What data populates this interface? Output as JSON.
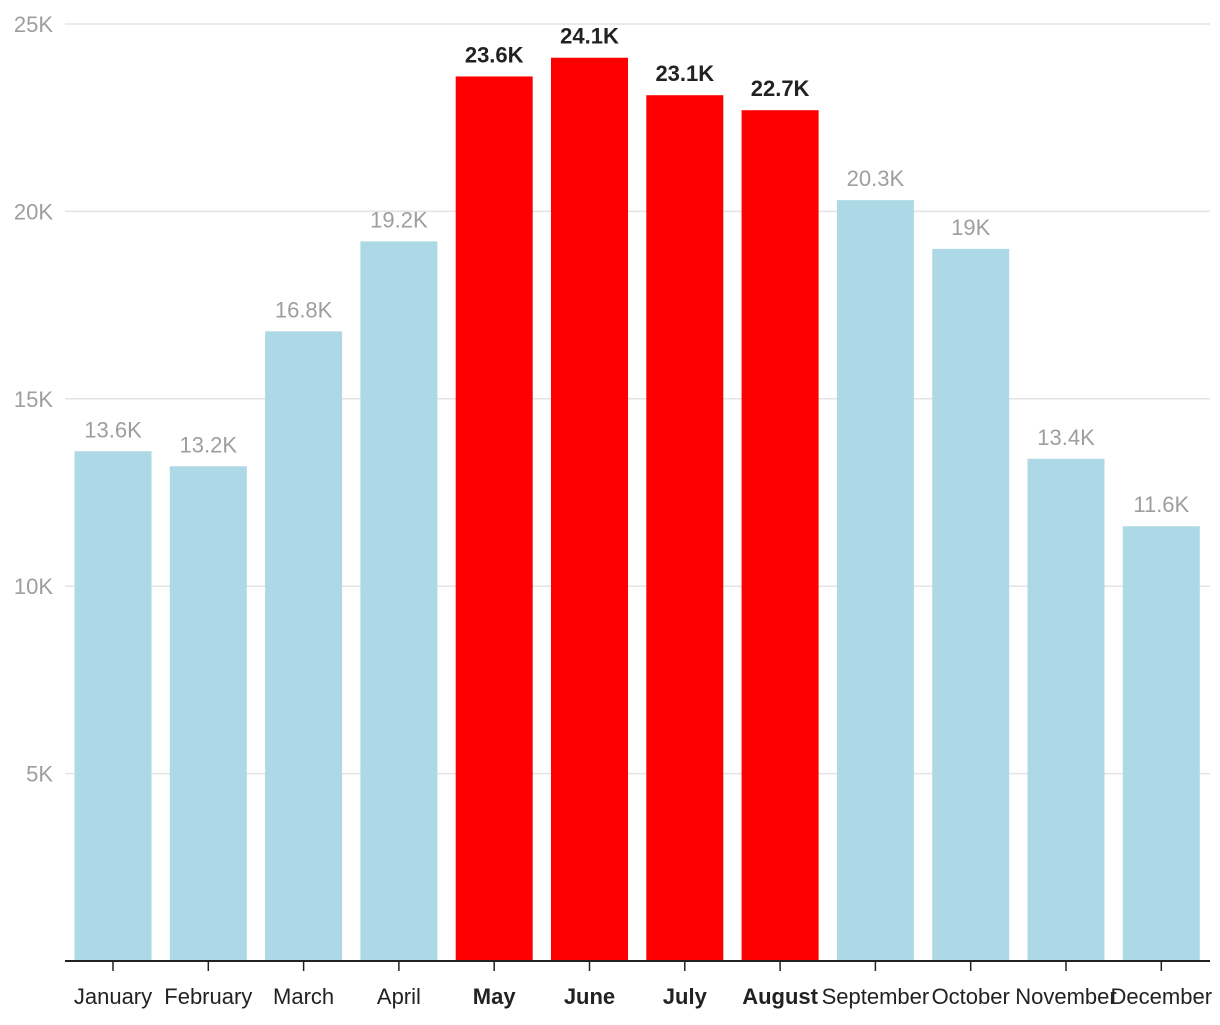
{
  "chart_data": {
    "type": "bar",
    "title": "",
    "xlabel": "",
    "ylabel": "",
    "ylim": [
      0,
      25000
    ],
    "yticks": [
      5000,
      10000,
      15000,
      20000,
      25000
    ],
    "ytick_labels": [
      "5K",
      "10K",
      "15K",
      "20K",
      "25K"
    ],
    "grid": true,
    "categories": [
      "January",
      "February",
      "March",
      "April",
      "May",
      "June",
      "July",
      "August",
      "September",
      "October",
      "November",
      "December"
    ],
    "values": [
      13600,
      13200,
      16800,
      19200,
      23600,
      24100,
      23100,
      22700,
      20300,
      19000,
      13400,
      11600
    ],
    "data_labels": [
      "13.6K",
      "13.2K",
      "16.8K",
      "19.2K",
      "23.6K",
      "24.1K",
      "23.1K",
      "22.7K",
      "20.3K",
      "19K",
      "13.4K",
      "11.6K"
    ],
    "highlighted": [
      false,
      false,
      false,
      false,
      true,
      true,
      true,
      true,
      false,
      false,
      false,
      false
    ],
    "colors": {
      "bar": "#add8e6",
      "highlight_bar": "#ff0000",
      "label": "#9e9e9e",
      "highlight_label": "#222222",
      "grid": "#e3e3e3"
    }
  }
}
